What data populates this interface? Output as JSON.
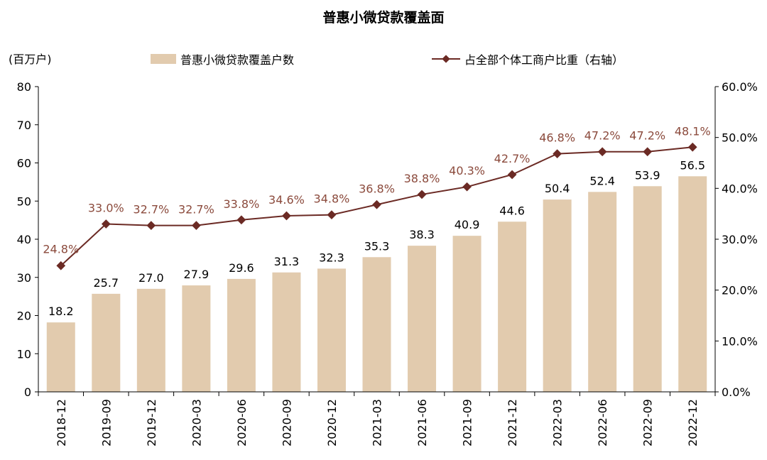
{
  "title": "普惠小微贷款覆盖面",
  "left_unit": "(百万户)",
  "colors": {
    "bar": "#e2cbae",
    "line": "#6b2a24",
    "label": "#8b4a3c",
    "axis": "#000000"
  },
  "chart_data": {
    "type": "bar",
    "title": "普惠小微贷款覆盖面",
    "categories": [
      "2018-12",
      "2019-09",
      "2019-12",
      "2020-03",
      "2020-06",
      "2020-09",
      "2020-12",
      "2021-03",
      "2021-06",
      "2021-09",
      "2021-12",
      "2022-03",
      "2022-06",
      "2022-09",
      "2022-12"
    ],
    "series": [
      {
        "name": "普惠小微贷款覆盖户数",
        "type": "bar",
        "axis": "left",
        "values": [
          18.2,
          25.7,
          27.0,
          27.9,
          29.6,
          31.3,
          32.3,
          35.3,
          38.3,
          40.9,
          44.6,
          50.4,
          52.4,
          53.9,
          56.5
        ],
        "labels": [
          "18.2",
          "25.7",
          "27.0",
          "27.9",
          "29.6",
          "31.3",
          "32.3",
          "35.3",
          "38.3",
          "40.9",
          "44.6",
          "50.4",
          "52.4",
          "53.9",
          "56.5"
        ]
      },
      {
        "name": "占全部个体工商户比重（右轴）",
        "type": "line",
        "axis": "right",
        "values": [
          24.8,
          33.0,
          32.7,
          32.7,
          33.8,
          34.6,
          34.8,
          36.8,
          38.8,
          40.3,
          42.7,
          46.8,
          47.2,
          47.2,
          48.1
        ],
        "labels": [
          "24.8%",
          "33.0%",
          "32.7%",
          "32.7%",
          "33.8%",
          "34.6%",
          "34.8%",
          "36.8%",
          "38.8%",
          "40.3%",
          "42.7%",
          "46.8%",
          "47.2%",
          "47.2%",
          "48.1%"
        ]
      }
    ],
    "left_axis": {
      "label": "(百万户)",
      "ylim": [
        0,
        80
      ],
      "ticks": [
        "0",
        "10",
        "20",
        "30",
        "40",
        "50",
        "60",
        "70",
        "80"
      ]
    },
    "right_axis": {
      "ylim": [
        0,
        60
      ],
      "ticks": [
        "0.0%",
        "10.0%",
        "20.0%",
        "30.0%",
        "40.0%",
        "50.0%",
        "60.0%"
      ]
    },
    "grid": false,
    "legend_position": "top"
  }
}
